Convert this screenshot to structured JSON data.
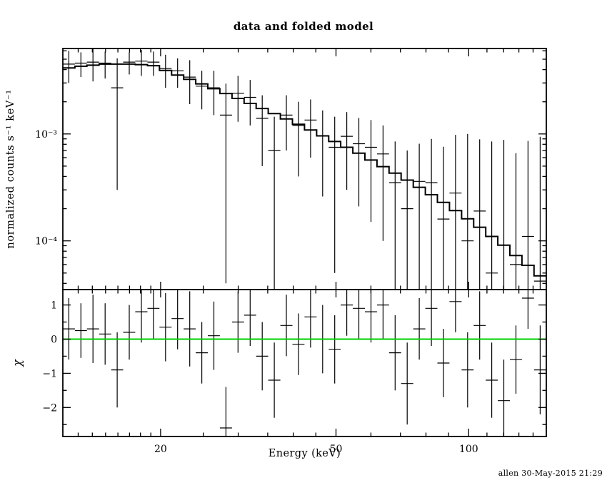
{
  "title": "data and folded model",
  "footer": "allen 30-May-2015 21:29",
  "axes": {
    "x_label": "Energy (keV)",
    "y_label_top": "normalized counts s⁻¹ keV⁻¹",
    "y_label_bottom": "χ"
  },
  "chart_data": [
    {
      "type": "line",
      "panel": "spectrum",
      "title": "data and folded model",
      "xlabel": "Energy (keV)",
      "ylabel": "normalized counts s⁻¹ keV⁻¹",
      "xscale": "log",
      "yscale": "log",
      "xlim": [
        12,
        150
      ],
      "ylim": [
        3.5e-05,
        0.0063
      ],
      "grid": false,
      "legend": "none",
      "x_ticks": [
        {
          "value": 20,
          "label": "20"
        },
        {
          "value": 50,
          "label": "50"
        },
        {
          "value": 100,
          "label": "100"
        }
      ],
      "x_minor_ticks": [
        13,
        14,
        15,
        16,
        17,
        18,
        19,
        25,
        30,
        35,
        40,
        45,
        60,
        70,
        80,
        90,
        110,
        120,
        130,
        140
      ],
      "y_ticks": [
        {
          "value": 0.001,
          "label": "10⁻³"
        },
        {
          "value": 0.0001,
          "label": "10⁻⁴"
        }
      ],
      "bin_edges": [
        12.0,
        12.78,
        13.61,
        14.5,
        15.45,
        16.45,
        17.52,
        18.67,
        19.88,
        21.18,
        22.56,
        24.03,
        25.59,
        27.26,
        29.04,
        30.93,
        32.95,
        35.09,
        37.38,
        39.82,
        42.41,
        45.18,
        48.12,
        51.25,
        54.59,
        58.15,
        61.94,
        65.97,
        70.27,
        74.85,
        79.73,
        84.92,
        90.45,
        96.35,
        102.62,
        109.31,
        116.43,
        124.01,
        132.09,
        140.7,
        150.0
      ],
      "series": [
        {
          "name": "folded model",
          "style": "step-histogram",
          "values": [
            0.00415,
            0.0043,
            0.0044,
            0.0045,
            0.0045,
            0.0045,
            0.00445,
            0.00435,
            0.00393,
            0.00356,
            0.00324,
            0.00294,
            0.00265,
            0.00239,
            0.00215,
            0.00193,
            0.00173,
            0.00155,
            0.00138,
            0.00123,
            0.00109,
            0.00096,
            0.00085,
            0.00075,
            0.00066,
            0.00057,
            0.000495,
            0.00043,
            0.00037,
            0.000317,
            0.00027,
            0.000229,
            0.000192,
            0.000161,
            0.000134,
            0.00011,
            9.1e-05,
            7.3e-05,
            5.9e-05,
            4.7e-05
          ]
        },
        {
          "name": "data",
          "style": "errorbars",
          "values": [
            0.0045,
            0.0046,
            0.0047,
            0.0046,
            0.0027,
            0.0047,
            0.0048,
            0.0047,
            0.0041,
            0.0039,
            0.0034,
            0.0028,
            0.0027,
            0.0015,
            0.0024,
            0.0022,
            0.0014,
            0.0007,
            0.0015,
            0.0012,
            0.00135,
            0.00096,
            0.00075,
            0.00095,
            0.00081,
            0.00075,
            0.00065,
            0.00035,
            0.0002,
            0.00036,
            0.00035,
            0.00016,
            0.00028,
            0.0001,
            0.00019,
            5e-05,
            3e-05,
            6e-05,
            0.00011,
            4.2e-05
          ],
          "errors": [
            0.0015,
            0.0012,
            0.0016,
            0.0013,
            0.0024,
            0.0011,
            0.0013,
            0.0012,
            0.0014,
            0.0012,
            0.0015,
            0.0011,
            0.0012,
            0.00146,
            0.0011,
            0.001,
            0.0009,
            0.00075,
            0.0008,
            0.0008,
            0.00075,
            0.0007,
            0.0007,
            0.00065,
            0.0006,
            0.0006,
            0.00055,
            0.0005,
            0.0005,
            0.00045,
            0.00055,
            0.0006,
            0.0007,
            0.0009,
            0.0007,
            0.0008,
            0.00085,
            0.0006,
            0.00075,
            0.0009
          ]
        }
      ]
    },
    {
      "type": "scatter",
      "panel": "residuals",
      "ylabel": "χ",
      "xscale": "log",
      "yscale": "linear",
      "xlim": [
        12,
        150
      ],
      "ylim": [
        -2.85,
        1.45
      ],
      "grid": false,
      "y_ticks": [
        {
          "value": 1,
          "label": "1"
        },
        {
          "value": 0,
          "label": "0"
        },
        {
          "value": -1,
          "label": "−1"
        },
        {
          "value": -2,
          "label": "−2"
        }
      ],
      "y_minor_ticks": [
        0.5,
        -0.5,
        -1.5,
        -2.5
      ],
      "zero_line": {
        "value": 0,
        "color": "#00d000"
      },
      "series": [
        {
          "name": "chi",
          "style": "errorbars",
          "values": [
            0.3,
            0.25,
            0.3,
            0.15,
            -0.9,
            0.2,
            0.8,
            0.9,
            0.35,
            0.6,
            0.3,
            -0.4,
            0.1,
            -2.6,
            0.5,
            0.7,
            -0.5,
            -1.2,
            0.4,
            -0.15,
            0.65,
            0.0,
            -0.3,
            1.0,
            0.9,
            0.8,
            1.0,
            -0.4,
            -1.3,
            0.3,
            0.9,
            -0.7,
            1.1,
            -0.9,
            0.4,
            -1.2,
            -1.8,
            -0.6,
            1.2,
            -0.9
          ],
          "errors": [
            0.9,
            0.8,
            1.0,
            0.9,
            1.1,
            0.8,
            0.9,
            0.9,
            1.0,
            0.9,
            1.1,
            0.9,
            1.0,
            1.2,
            0.9,
            0.9,
            1.0,
            1.1,
            0.9,
            0.9,
            0.9,
            1.0,
            1.0,
            0.9,
            0.9,
            0.9,
            1.0,
            1.1,
            1.2,
            0.9,
            1.1,
            1.0,
            0.9,
            1.1,
            1.0,
            1.1,
            1.2,
            1.0,
            0.9,
            1.3
          ]
        }
      ]
    }
  ]
}
